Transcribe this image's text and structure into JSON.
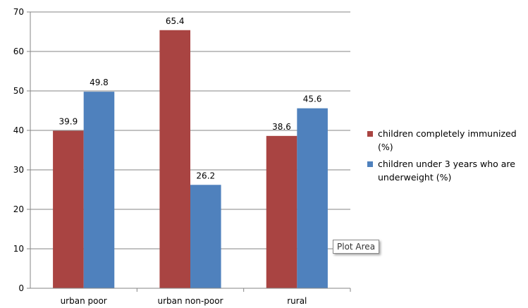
{
  "chart_data": {
    "type": "bar",
    "categories": [
      "urban poor",
      "urban non-poor",
      "rural"
    ],
    "series": [
      {
        "name": "children completely immunized (%)",
        "values": [
          39.9,
          65.4,
          38.6
        ],
        "color": "#A94442"
      },
      {
        "name": "children under 3 years who are underweight (%)",
        "values": [
          49.8,
          26.2,
          45.6
        ],
        "color": "#4F81BD"
      }
    ],
    "ylim": [
      0,
      70
    ],
    "yticks": [
      "0",
      "10",
      "20",
      "30",
      "40",
      "50",
      "60",
      "70"
    ],
    "grid": true,
    "legend_position": "right",
    "title": "",
    "xlabel": "",
    "ylabel": ""
  },
  "tooltip": {
    "text": "Plot Area"
  }
}
